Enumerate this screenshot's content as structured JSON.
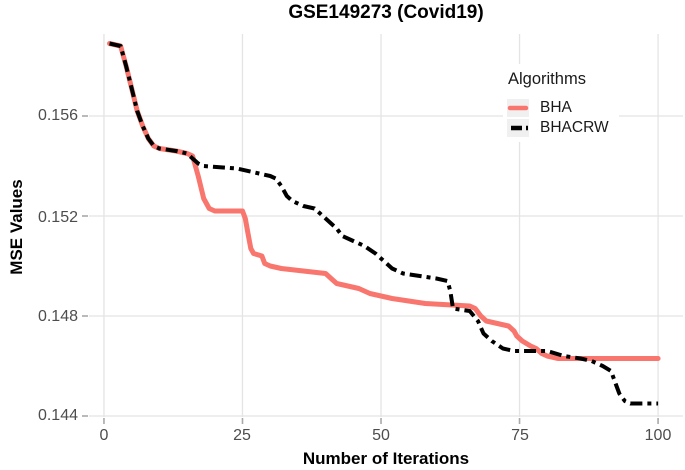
{
  "title": "GSE149273 (Covid19)",
  "colors": {
    "bha": "#F8766D",
    "bhacrw": "#000000",
    "grid": "#e4e4e4",
    "tick_mark": "#a9a9a9",
    "tick_label": "#4d4d4d",
    "legend_key_bg": "#f0f0f0"
  },
  "chart_data": {
    "type": "line",
    "title": "GSE149273 (Covid19)",
    "xlabel": "Number of Iterations",
    "ylabel": "MSE Values",
    "legend_title": "Algorithms",
    "legend_position": "right-top-inside",
    "grid": "major-only",
    "xlim": [
      -2.7,
      104.5
    ],
    "ylim": [
      0.14396,
      0.15928
    ],
    "xticks": [
      0,
      25,
      50,
      75,
      100
    ],
    "yticks": [
      0.144,
      0.148,
      0.152,
      0.156
    ],
    "xtick_labels": [
      "0",
      "25",
      "50",
      "75",
      "100"
    ],
    "ytick_labels": [
      "0.144",
      "0.148",
      "0.152",
      "0.156"
    ],
    "series": [
      {
        "name": "BHA",
        "color": "#F8766D",
        "linetype": "solid",
        "linewidth": 5,
        "points": [
          [
            1,
            0.1589
          ],
          [
            3,
            0.1588
          ],
          [
            4,
            0.158
          ],
          [
            5,
            0.1571
          ],
          [
            6,
            0.1562
          ],
          [
            7,
            0.1556
          ],
          [
            8,
            0.1551
          ],
          [
            9,
            0.1548
          ],
          [
            10,
            0.1547
          ],
          [
            13,
            0.1546
          ],
          [
            15,
            0.1545
          ],
          [
            16,
            0.1544
          ],
          [
            17,
            0.1536
          ],
          [
            18,
            0.1527
          ],
          [
            19,
            0.1523
          ],
          [
            20,
            0.1522
          ],
          [
            25,
            0.1522
          ],
          [
            25.5,
            0.1519
          ],
          [
            26,
            0.1513
          ],
          [
            26.5,
            0.1507
          ],
          [
            27,
            0.1505
          ],
          [
            28.5,
            0.1504
          ],
          [
            29,
            0.1501
          ],
          [
            30,
            0.15
          ],
          [
            32,
            0.1499
          ],
          [
            36,
            0.1498
          ],
          [
            40,
            0.1497
          ],
          [
            41,
            0.1495
          ],
          [
            42,
            0.1493
          ],
          [
            44,
            0.1492
          ],
          [
            46,
            0.1491
          ],
          [
            48,
            0.1489
          ],
          [
            50,
            0.1488
          ],
          [
            52,
            0.1487
          ],
          [
            55,
            0.1486
          ],
          [
            58,
            0.1485
          ],
          [
            66,
            0.1484
          ],
          [
            67,
            0.1483
          ],
          [
            68,
            0.148
          ],
          [
            69,
            0.1478
          ],
          [
            71,
            0.1477
          ],
          [
            73,
            0.1476
          ],
          [
            74,
            0.1474
          ],
          [
            74.5,
            0.1472
          ],
          [
            75,
            0.1471
          ],
          [
            75.5,
            0.147
          ],
          [
            77,
            0.1468
          ],
          [
            78,
            0.1467
          ],
          [
            79,
            0.1465
          ],
          [
            80,
            0.1464
          ],
          [
            82,
            0.1463
          ],
          [
            100,
            0.1463
          ]
        ]
      },
      {
        "name": "BHACRW",
        "color": "#000000",
        "linetype": "dotdash",
        "linewidth": 4,
        "points": [
          [
            1,
            0.1589
          ],
          [
            3,
            0.1588
          ],
          [
            4,
            0.158
          ],
          [
            5,
            0.1571
          ],
          [
            6,
            0.1562
          ],
          [
            7,
            0.1556
          ],
          [
            8,
            0.1551
          ],
          [
            9,
            0.1548
          ],
          [
            10,
            0.1547
          ],
          [
            13,
            0.1546
          ],
          [
            15,
            0.1545
          ],
          [
            16,
            0.1543
          ],
          [
            17,
            0.1541
          ],
          [
            18,
            0.154
          ],
          [
            24,
            0.1539
          ],
          [
            28,
            0.1537
          ],
          [
            30,
            0.1536
          ],
          [
            31,
            0.1535
          ],
          [
            32,
            0.1532
          ],
          [
            33,
            0.1528
          ],
          [
            34,
            0.1526
          ],
          [
            36,
            0.1524
          ],
          [
            38,
            0.1523
          ],
          [
            39,
            0.1521
          ],
          [
            40,
            0.1519
          ],
          [
            41,
            0.1517
          ],
          [
            42,
            0.1515
          ],
          [
            43,
            0.1512
          ],
          [
            45,
            0.151
          ],
          [
            47,
            0.1508
          ],
          [
            49,
            0.1505
          ],
          [
            50,
            0.1503
          ],
          [
            51,
            0.1501
          ],
          [
            52,
            0.1499
          ],
          [
            54,
            0.1497
          ],
          [
            57,
            0.1496
          ],
          [
            60,
            0.1495
          ],
          [
            62,
            0.1494
          ],
          [
            62.5,
            0.149
          ],
          [
            63,
            0.1483
          ],
          [
            66,
            0.1482
          ],
          [
            67.5,
            0.1478
          ],
          [
            68.5,
            0.1473
          ],
          [
            70,
            0.147
          ],
          [
            72,
            0.1467
          ],
          [
            74,
            0.1466
          ],
          [
            80,
            0.1466
          ],
          [
            83,
            0.1464
          ],
          [
            86,
            0.1463
          ],
          [
            88,
            0.1462
          ],
          [
            90,
            0.146
          ],
          [
            91.5,
            0.1458
          ],
          [
            92.5,
            0.1452
          ],
          [
            93,
            0.1449
          ],
          [
            94,
            0.1446
          ],
          [
            95,
            0.1445
          ],
          [
            100,
            0.1445
          ]
        ]
      }
    ]
  }
}
